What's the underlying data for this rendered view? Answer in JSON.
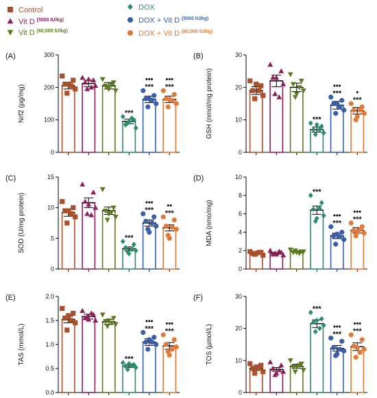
{
  "legend": [
    {
      "label": "Control",
      "sup": "",
      "color": "#a8502b",
      "marker": "square"
    },
    {
      "label": "Vit D",
      "sup": "(5000 IU/kg)",
      "color": "#8b1f5a",
      "marker": "triangle-up"
    },
    {
      "label": "Vit D",
      "sup": "(60,000 IU/kg)",
      "color": "#5a7a1c",
      "marker": "triangle-down"
    },
    {
      "label": "DOX",
      "sup": "",
      "color": "#2a8c6e",
      "marker": "diamond"
    },
    {
      "label": "DOX + Vit D",
      "sup": "(5000 IU/kg)",
      "color": "#3a5fa8",
      "marker": "circle"
    },
    {
      "label": "DOX + Vit D",
      "sup": "(60,000 IU/kg)",
      "color": "#e07a3a",
      "marker": "circle"
    }
  ],
  "chart_data": [
    {
      "panel": "(A)",
      "type": "bar",
      "ylabel": "Nrf2 (pg/mg)",
      "ylim": [
        0,
        300
      ],
      "yticks": [
        0,
        100,
        200,
        300
      ],
      "yticklabels": [
        "0",
        "100",
        "200",
        "300"
      ],
      "groups": [
        "Control",
        "Vit D (5000 IU/kg)",
        "Vit D (60,000 IU/kg)",
        "DOX",
        "DOX + Vit D (5000 IU/kg)",
        "DOX + Vit D (60,000 IU/kg)"
      ],
      "values": [
        205,
        212,
        205,
        95,
        163,
        163
      ],
      "errors": [
        10,
        10,
        10,
        7,
        10,
        10
      ],
      "points": [
        [
          235,
          222,
          210,
          195,
          182,
          205,
          210
        ],
        [
          230,
          222,
          215,
          205,
          195,
          200,
          225
        ],
        [
          225,
          215,
          205,
          190,
          200,
          208,
          195
        ],
        [
          110,
          100,
          85,
          75,
          90,
          105,
          95
        ],
        [
          190,
          175,
          165,
          150,
          140,
          160,
          165
        ],
        [
          190,
          178,
          165,
          150,
          140,
          160,
          162
        ]
      ],
      "sig": [
        "",
        "",
        "",
        "***",
        "***",
        "***"
      ],
      "dots": [
        "",
        "",
        "",
        "",
        "•••",
        "•••"
      ]
    },
    {
      "panel": "(B)",
      "type": "bar",
      "ylabel": "GSH (nmol/mg protein)",
      "ylim": [
        0,
        30
      ],
      "yticks": [
        0,
        10,
        20,
        30
      ],
      "yticklabels": [
        "0",
        "10",
        "20",
        "30"
      ],
      "groups": [
        "Control",
        "Vit D (5000 IU/kg)",
        "Vit D (60,000 IU/kg)",
        "DOX",
        "DOX + Vit D (5000 IU/kg)",
        "DOX + Vit D (60,000 IU/kg)"
      ],
      "values": [
        19,
        22,
        20,
        7,
        14.5,
        12.8
      ],
      "errors": [
        1.2,
        1.8,
        1.3,
        0.8,
        1.2,
        1.0
      ],
      "points": [
        [
          22,
          20.5,
          19,
          17.5,
          16.5,
          19,
          21
        ],
        [
          27,
          25,
          23,
          21,
          18,
          17,
          23
        ],
        [
          24,
          22,
          21,
          19,
          17,
          20,
          18
        ],
        [
          9,
          8,
          7,
          6,
          5.5,
          7,
          8.5
        ],
        [
          17,
          16,
          15,
          13,
          12,
          14,
          15
        ],
        [
          15,
          14,
          13,
          12,
          10,
          13,
          11
        ]
      ],
      "sig": [
        "",
        "",
        "",
        "***",
        "***",
        "***"
      ],
      "dots": [
        "",
        "",
        "",
        "",
        "•••",
        "•"
      ]
    },
    {
      "panel": "(C)",
      "type": "bar",
      "ylabel": "SOD (U/mg protein)",
      "ylim": [
        0,
        15
      ],
      "yticks": [
        0,
        5,
        10,
        15
      ],
      "yticklabels": [
        "0",
        "5",
        "10",
        "15"
      ],
      "groups": [
        "Control",
        "Vit D (5000 IU/kg)",
        "Vit D (60,000 IU/kg)",
        "DOX",
        "DOX + Vit D (5000 IU/kg)",
        "DOX + Vit D (60,000 IU/kg)"
      ],
      "values": [
        9.2,
        10.8,
        9.5,
        3.3,
        7.5,
        6.7
      ],
      "errors": [
        0.6,
        0.8,
        0.6,
        0.3,
        0.5,
        0.5
      ],
      "points": [
        [
          11,
          10,
          9.5,
          8.5,
          7.5,
          9,
          9.5
        ],
        [
          13.8,
          12.5,
          11,
          10,
          9,
          8.8,
          10.5
        ],
        [
          13,
          10,
          9.5,
          8.5,
          8,
          9.3,
          9
        ],
        [
          4.5,
          4,
          3.5,
          3,
          2.8,
          3.2,
          2.5
        ],
        [
          9,
          8.5,
          7.8,
          7,
          6.5,
          7.5,
          6
        ],
        [
          8.5,
          8,
          7,
          6.5,
          5.5,
          6.8,
          5
        ]
      ],
      "sig": [
        "",
        "",
        "",
        "***",
        "***",
        "***"
      ],
      "dots": [
        "",
        "",
        "",
        "",
        "•••",
        "••"
      ]
    },
    {
      "panel": "(D)",
      "type": "bar",
      "ylabel": "MDA (nmo/mg)",
      "ylim": [
        0,
        10
      ],
      "yticks": [
        0,
        2,
        4,
        6,
        8,
        10
      ],
      "yticklabels": [
        "0",
        "2",
        "4",
        "6",
        "8",
        "10"
      ],
      "groups": [
        "Control",
        "Vit D (5000 IU/kg)",
        "Vit D (60,000 IU/kg)",
        "DOX",
        "DOX + Vit D (5000 IU/kg)",
        "DOX + Vit D (60,000 IU/kg)"
      ],
      "values": [
        1.7,
        1.7,
        1.9,
        6.4,
        3.6,
        4.2
      ],
      "errors": [
        0.12,
        0.1,
        0.1,
        0.45,
        0.3,
        0.3
      ],
      "points": [
        [
          1.9,
          1.8,
          1.7,
          1.5,
          1.6,
          1.8,
          1.7
        ],
        [
          2.0,
          1.8,
          1.6,
          1.5,
          1.7,
          1.9,
          1.6
        ],
        [
          2.1,
          1.9,
          1.8,
          1.9,
          2.0,
          1.7,
          1.8
        ],
        [
          8.0,
          7.2,
          6.5,
          5.8,
          5.2,
          6.6,
          5.5
        ],
        [
          4.6,
          4.0,
          3.6,
          3.2,
          2.7,
          3.5,
          3.8
        ],
        [
          5.0,
          4.6,
          4.2,
          3.9,
          3.6,
          4.3,
          4.0
        ]
      ],
      "sig": [
        "",
        "",
        "",
        "***",
        "***",
        "***"
      ],
      "dots": [
        "",
        "",
        "",
        "",
        "•••",
        "•••"
      ]
    },
    {
      "panel": "(E)",
      "type": "bar",
      "ylabel": "TAS (mmol/L)",
      "ylim": [
        0,
        2.0
      ],
      "yticks": [
        0,
        0.5,
        1.0,
        1.5,
        2.0
      ],
      "yticklabels": [
        "0.0",
        "0.5",
        "1.0",
        "1.5",
        "2.0"
      ],
      "groups": [
        "Control",
        "Vit D (5000 IU/kg)",
        "Vit D (60,000 IU/kg)",
        "DOX",
        "DOX + Vit D (5000 IU/kg)",
        "DOX + Vit D (60,000 IU/kg)"
      ],
      "values": [
        1.52,
        1.58,
        1.47,
        0.55,
        1.05,
        0.97
      ],
      "errors": [
        0.07,
        0.05,
        0.05,
        0.03,
        0.07,
        0.07
      ],
      "points": [
        [
          1.75,
          1.65,
          1.55,
          1.45,
          1.3,
          1.5,
          1.6
        ],
        [
          1.7,
          1.62,
          1.55,
          1.5,
          1.58,
          1.65,
          1.52
        ],
        [
          1.62,
          1.55,
          1.48,
          1.42,
          1.38,
          1.45,
          1.5
        ],
        [
          0.62,
          0.58,
          0.55,
          0.52,
          0.48,
          0.56,
          0.6
        ],
        [
          1.25,
          1.15,
          1.05,
          1.0,
          0.9,
          1.05,
          1.1
        ],
        [
          1.2,
          1.1,
          1.0,
          0.95,
          0.85,
          0.9,
          0.78
        ]
      ],
      "sig": [
        "",
        "",
        "",
        "***",
        "***",
        "***"
      ],
      "dots": [
        "",
        "",
        "",
        "",
        "•••",
        "•••"
      ]
    },
    {
      "panel": "(F)",
      "type": "bar",
      "ylabel": "TOS (µmol/L)",
      "ylim": [
        0,
        30
      ],
      "yticks": [
        0,
        10,
        20,
        30
      ],
      "yticklabels": [
        "0",
        "10",
        "20",
        "30"
      ],
      "groups": [
        "Control",
        "Vit D (5000 IU/kg)",
        "Vit D (60,000 IU/kg)",
        "DOX",
        "DOX + Vit D (5000 IU/kg)",
        "DOX + Vit D (60,000 IU/kg)"
      ],
      "values": [
        7.5,
        7.2,
        8.2,
        21.5,
        13.8,
        14.3
      ],
      "errors": [
        0.5,
        0.6,
        0.6,
        1.2,
        0.9,
        1.2
      ],
      "points": [
        [
          9,
          8.5,
          7.5,
          6.5,
          6,
          7.5,
          8
        ],
        [
          9.5,
          8.5,
          7.5,
          6.5,
          5.5,
          7,
          6
        ],
        [
          10,
          9,
          8,
          7,
          6.5,
          8.5,
          8
        ],
        [
          25,
          23,
          22,
          21,
          19,
          20,
          22.5
        ],
        [
          17,
          16,
          14,
          13,
          11.5,
          13.5,
          12
        ],
        [
          18,
          16.5,
          14.5,
          13.5,
          11,
          12.5,
          14
        ]
      ],
      "sig": [
        "",
        "",
        "",
        "***",
        "***",
        "***"
      ],
      "dots": [
        "",
        "",
        "",
        "",
        "•••",
        "•••"
      ]
    }
  ]
}
